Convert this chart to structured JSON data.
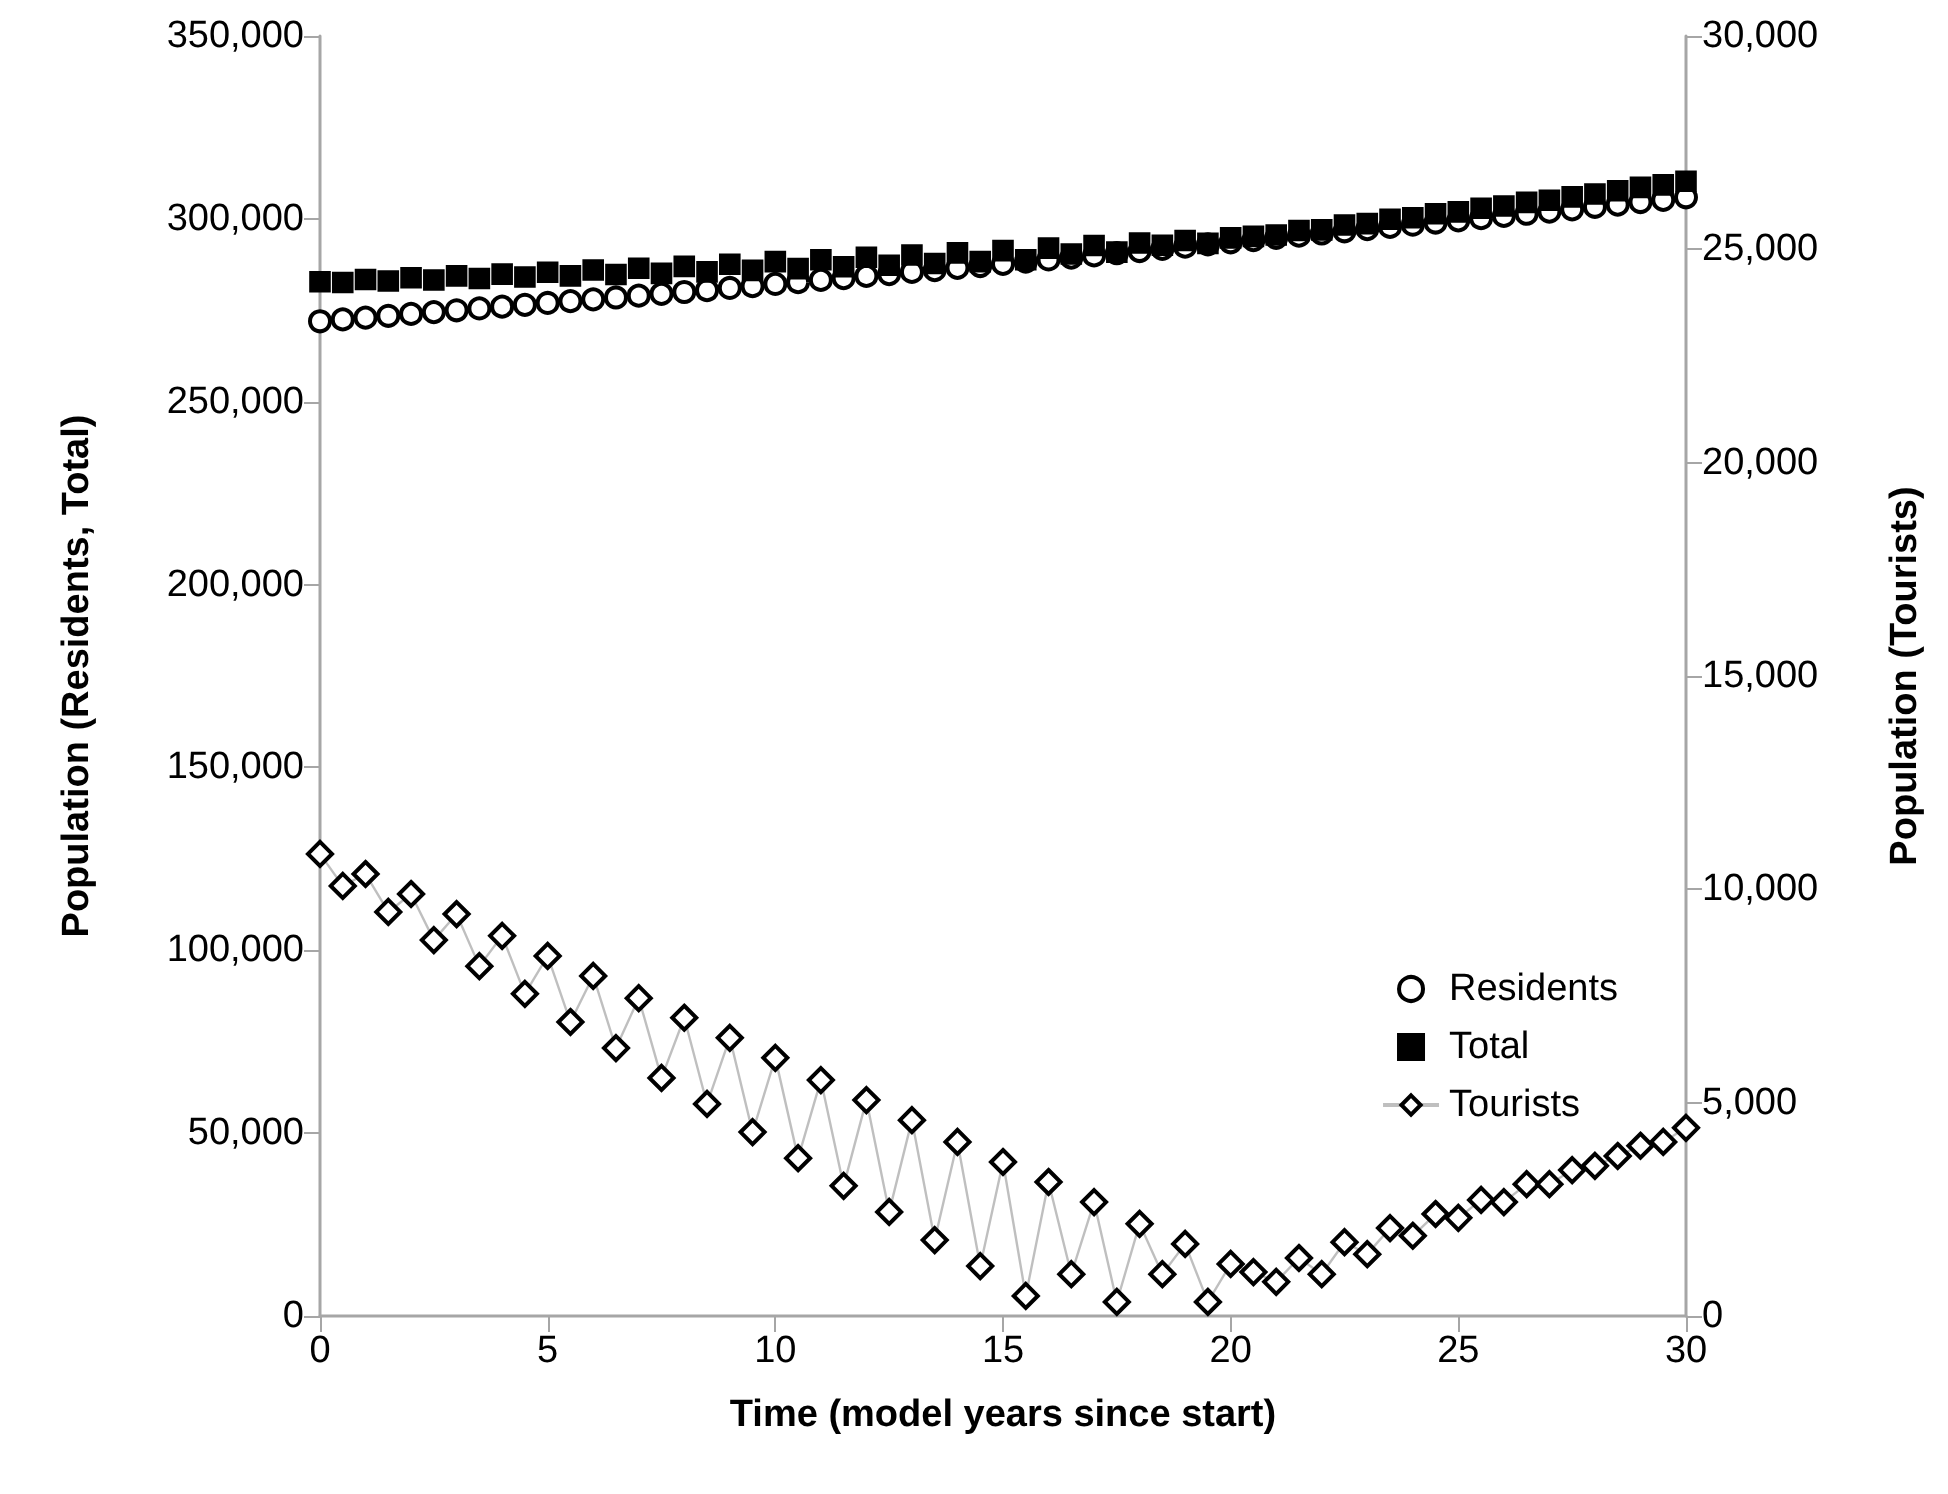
{
  "chart_data": {
    "type": "line",
    "xlabel": "Time (model years since start)",
    "ylabel": "Population (Residents, Total)",
    "y2label": "Population (Tourists)",
    "x": [
      0,
      0.5,
      1,
      1.5,
      2,
      2.5,
      3,
      3.5,
      4,
      4.5,
      5,
      5.5,
      6,
      6.5,
      7,
      7.5,
      8,
      8.5,
      9,
      9.5,
      10,
      10.5,
      11,
      11.5,
      12,
      12.5,
      13,
      13.5,
      14,
      14.5,
      15,
      15.5,
      16,
      16.5,
      17,
      17.5,
      18,
      18.5,
      19,
      19.5,
      20,
      20.5,
      21,
      21.5,
      22,
      22.5,
      23,
      23.5,
      24,
      24.5,
      25,
      25.5,
      26,
      26.5,
      27,
      27.5,
      28,
      28.5,
      29,
      29.5,
      30
    ],
    "series": [
      {
        "name": "Residents",
        "type": "scatter",
        "color": "#000000",
        "marker": "circle",
        "values": [
          272000,
          272500,
          273000,
          273500,
          274000,
          274500,
          275000,
          275500,
          276000,
          276500,
          277000,
          277500,
          278000,
          278500,
          279000,
          279500,
          280000,
          280500,
          281100,
          281600,
          282200,
          282700,
          283300,
          283800,
          284400,
          284900,
          285500,
          286000,
          286600,
          287100,
          287700,
          288300,
          288900,
          289400,
          290000,
          290600,
          291200,
          291800,
          292400,
          293000,
          293600,
          294200,
          294800,
          295400,
          296000,
          296600,
          297200,
          297800,
          298400,
          299000,
          299600,
          300200,
          300800,
          301400,
          302000,
          302600,
          303300,
          303900,
          304600,
          305200,
          305900
        ]
      },
      {
        "name": "Total",
        "type": "scatter",
        "color": "#000000",
        "marker": "square",
        "values": [
          282800,
          282600,
          283400,
          283000,
          283900,
          283300,
          284400,
          283700,
          284900,
          284100,
          285400,
          284400,
          286000,
          284800,
          286500,
          285100,
          287000,
          285500,
          287600,
          285900,
          288300,
          286400,
          288800,
          286900,
          289500,
          287300,
          290100,
          287800,
          290700,
          288300,
          291300,
          288800,
          292000,
          290400,
          292700,
          290900,
          293400,
          292800,
          294100,
          293300,
          294800,
          295200,
          295600,
          296800,
          297000,
          298300,
          298700,
          299900,
          300300,
          301400,
          301900,
          302900,
          303500,
          304500,
          305100,
          306000,
          306800,
          307700,
          308600,
          309300,
          310300
        ]
      },
      {
        "name": "Tourists",
        "color": "#000000",
        "marker": "diamond",
        "axis": "y2",
        "values": [
          10830,
          10080,
          10360,
          9470,
          9890,
          8810,
          9420,
          8200,
          8910,
          7550,
          8440,
          6890,
          7970,
          6280,
          7450,
          5580,
          6990,
          4970,
          6520,
          4310,
          6050,
          3700,
          5530,
          3050,
          5060,
          2440,
          4590,
          1780,
          4080,
          1170,
          3610,
          470,
          3140,
          980,
          2670,
          330,
          2160,
          980,
          1690,
          330,
          1220,
          1030,
          800,
          1360,
          980,
          1730,
          1450,
          2060,
          1880,
          2390,
          2300,
          2720,
          2670,
          3090,
          3090,
          3420,
          3520,
          3750,
          3990,
          4080,
          4410
        ]
      }
    ],
    "xlim": [
      0,
      30
    ],
    "xticks": [
      0,
      5,
      10,
      15,
      20,
      25,
      30
    ],
    "ylim": [
      0,
      350000
    ],
    "yticks": [
      0,
      {
        "value": 50000,
        "label": "50,000"
      },
      {
        "value": 100000,
        "label": "100,000"
      },
      {
        "value": 150000,
        "label": "150,000"
      },
      {
        "value": 200000,
        "label": "200,000"
      },
      {
        "value": 250000,
        "label": "250,000"
      },
      {
        "value": 300000,
        "label": "300,000"
      },
      {
        "value": 350000,
        "label": "350,000"
      }
    ],
    "y2lim": [
      0,
      30000
    ],
    "y2ticks": [
      0,
      {
        "value": 5000,
        "label": "5,000"
      },
      {
        "value": 10000,
        "label": "10,000"
      },
      {
        "value": 15000,
        "label": "15,000"
      },
      {
        "value": 20000,
        "label": "20,000"
      },
      {
        "value": 25000,
        "label": "25,000"
      },
      {
        "value": 30000,
        "label": "30,000"
      }
    ],
    "grid": false,
    "legend": "bottom right"
  }
}
